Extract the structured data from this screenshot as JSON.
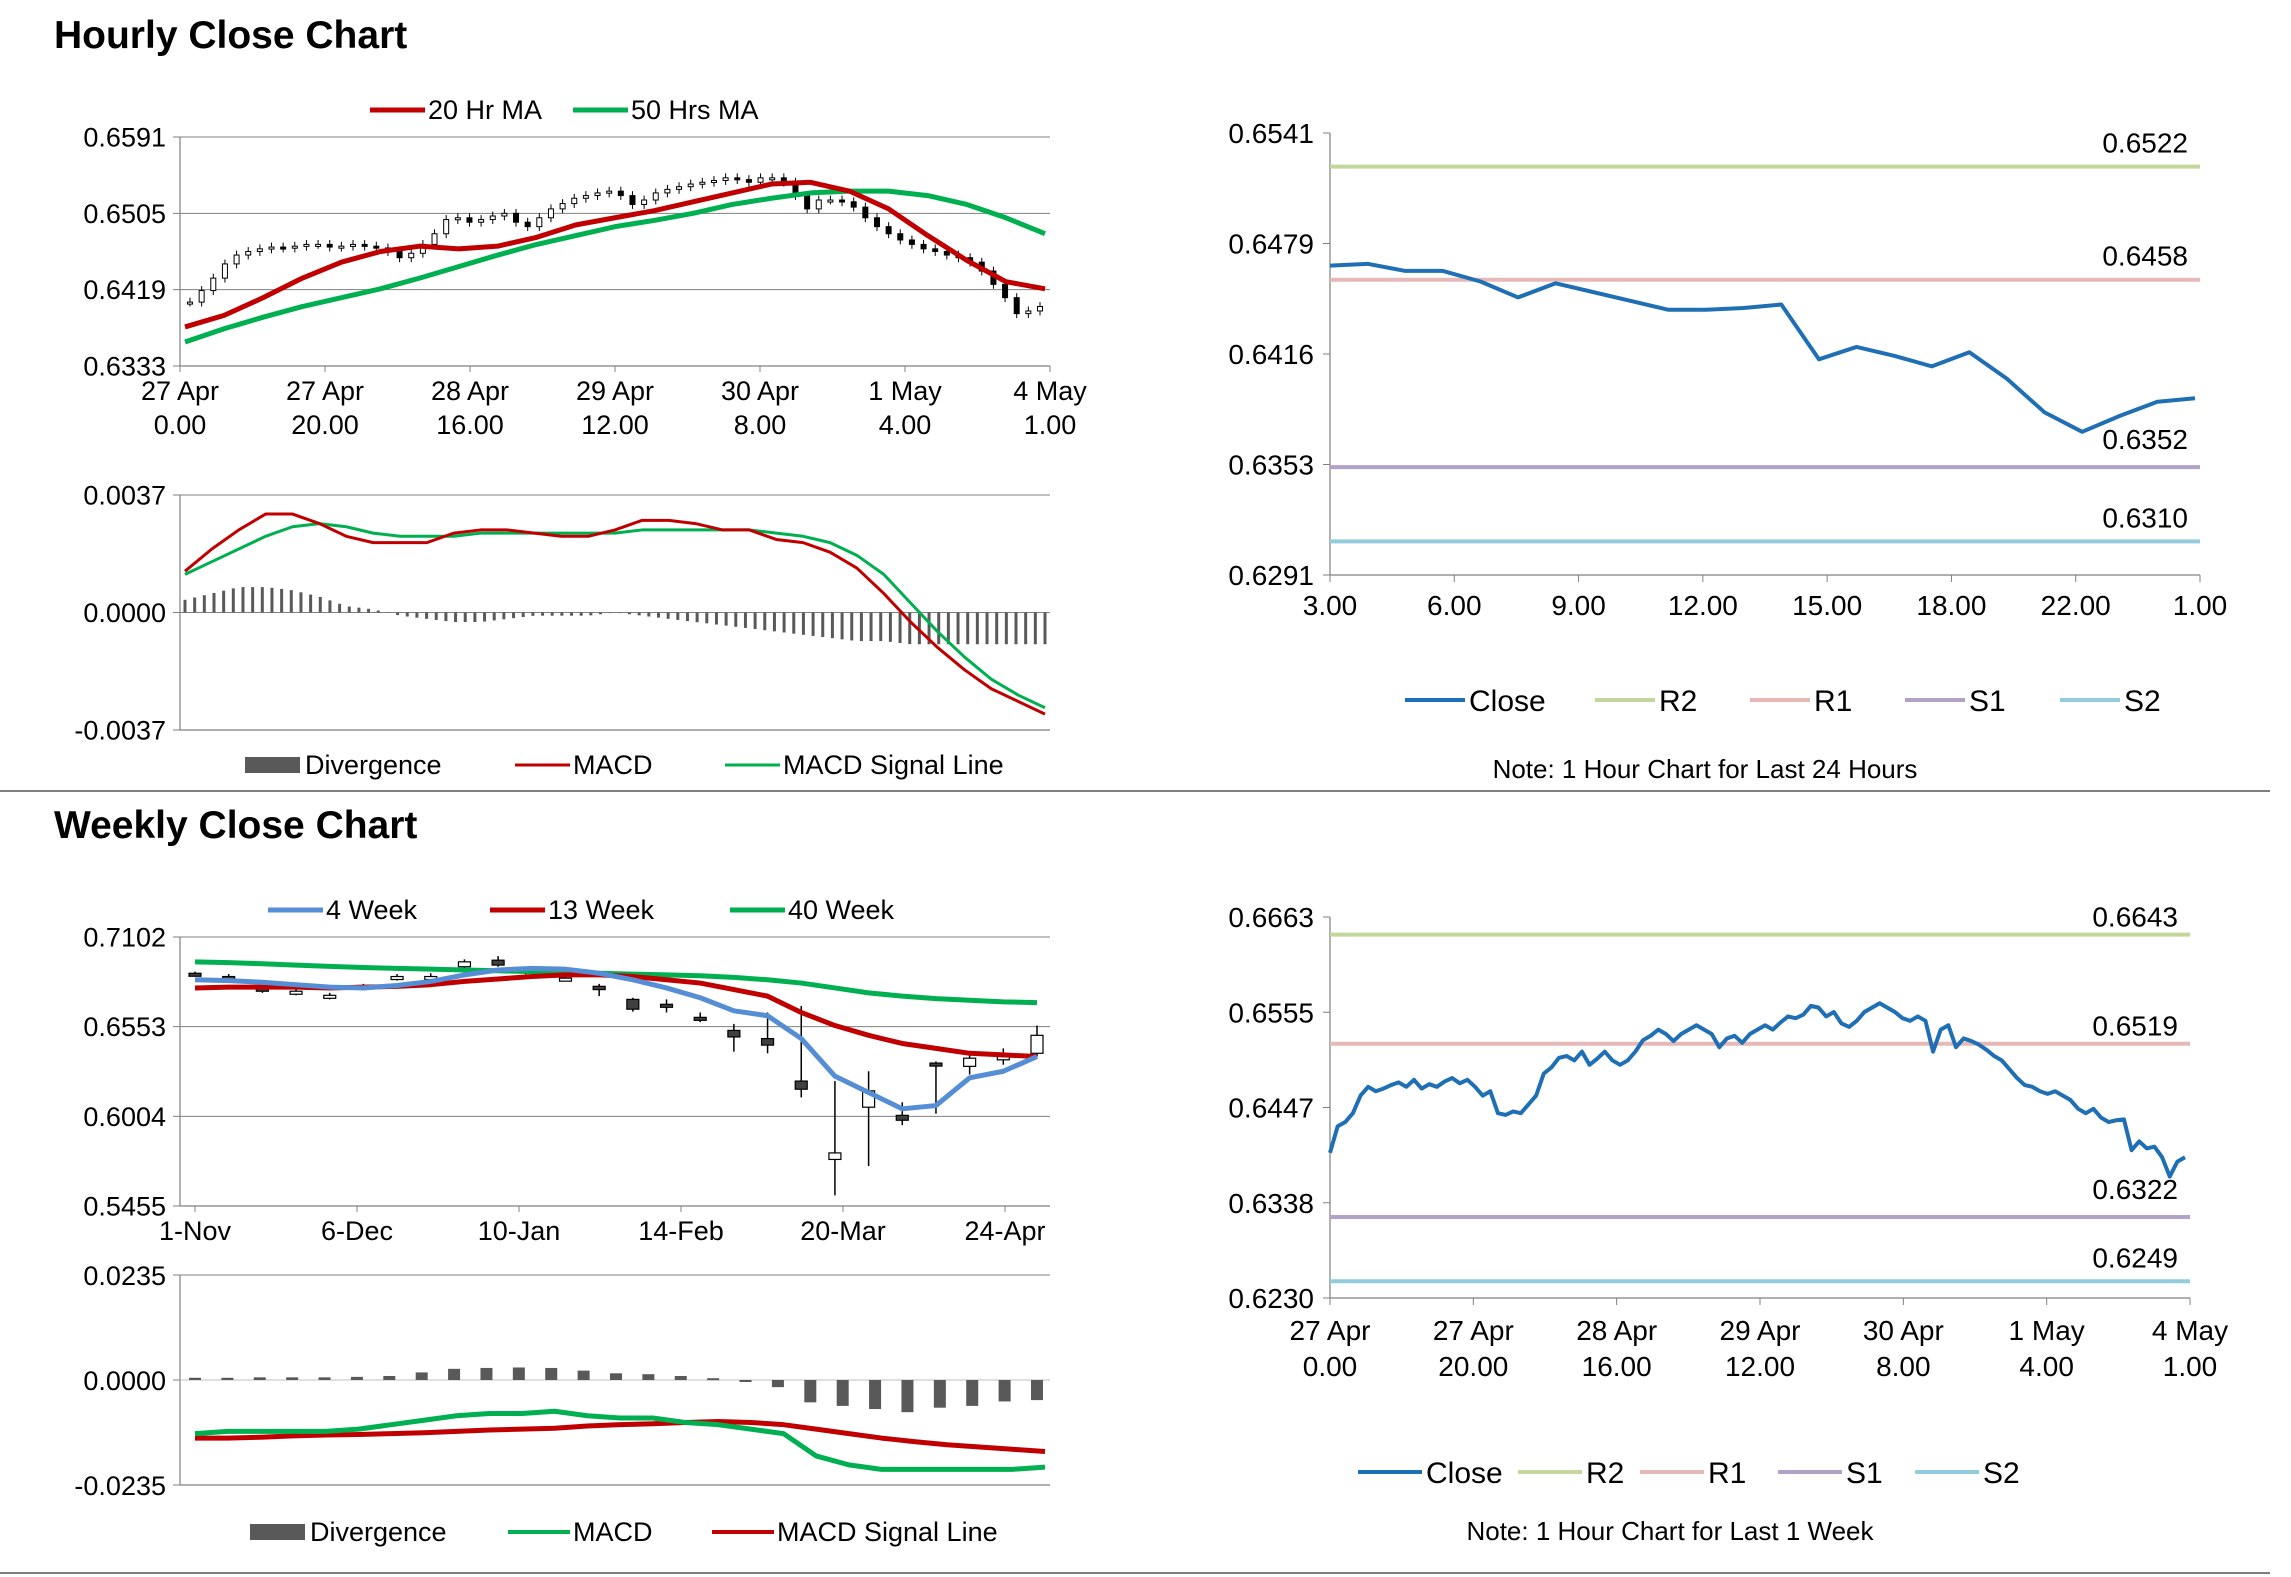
{
  "sections": {
    "hourly_title": "Hourly Close Chart",
    "weekly_title": "Weekly Close Chart"
  },
  "colors": {
    "ma20": "#c00000",
    "ma50": "#00b050",
    "close": "#1f6fb5",
    "r2": "#c3d69b",
    "r1": "#e6b9b8",
    "s1": "#b3a2c7",
    "s2": "#93cddd",
    "divergence": "#595959",
    "week4": "#558ed5"
  },
  "chart_data": [
    {
      "id": "hourly_candles",
      "type": "line",
      "legend": [
        "20 Hr MA",
        "50 Hrs MA"
      ],
      "yticks": [
        "0.6591",
        "0.6505",
        "0.6419",
        "0.6333"
      ],
      "ylim": [
        0.6333,
        0.6591
      ],
      "xticks": [
        [
          "27 Apr",
          "0.00"
        ],
        [
          "27 Apr",
          "20.00"
        ],
        [
          "28 Apr",
          "16.00"
        ],
        [
          "29 Apr",
          "12.00"
        ],
        [
          "30 Apr",
          "8.00"
        ],
        [
          "1 May",
          "4.00"
        ],
        [
          "4 May",
          "1.00"
        ]
      ],
      "candles_close": [
        0.6405,
        0.6418,
        0.6432,
        0.6448,
        0.6458,
        0.6462,
        0.6465,
        0.6467,
        0.6466,
        0.6468,
        0.647,
        0.647,
        0.6467,
        0.6468,
        0.647,
        0.6468,
        0.6466,
        0.6462,
        0.6455,
        0.646,
        0.647,
        0.6482,
        0.6498,
        0.65,
        0.6495,
        0.6498,
        0.6502,
        0.6505,
        0.6495,
        0.649,
        0.65,
        0.651,
        0.6516,
        0.6522,
        0.6525,
        0.6528,
        0.653,
        0.6525,
        0.6515,
        0.652,
        0.6528,
        0.6532,
        0.6535,
        0.6538,
        0.654,
        0.6542,
        0.6545,
        0.6543,
        0.654,
        0.6545,
        0.6545,
        0.654,
        0.6525,
        0.651,
        0.652,
        0.652,
        0.6518,
        0.6512,
        0.65,
        0.649,
        0.6482,
        0.6475,
        0.647,
        0.6465,
        0.6462,
        0.6458,
        0.6455,
        0.645,
        0.644,
        0.6425,
        0.641,
        0.6392,
        0.6395,
        0.64
      ],
      "series": [
        {
          "name": "20 Hr MA",
          "values": [
            0.6377,
            0.639,
            0.641,
            0.6432,
            0.645,
            0.6462,
            0.6468,
            0.6465,
            0.6468,
            0.6478,
            0.6492,
            0.65,
            0.6508,
            0.6518,
            0.6528,
            0.6538,
            0.654,
            0.653,
            0.651,
            0.648,
            0.6452,
            0.6428,
            0.642
          ]
        },
        {
          "name": "50 Hrs MA",
          "values": [
            0.636,
            0.6375,
            0.6388,
            0.64,
            0.641,
            0.642,
            0.6432,
            0.6445,
            0.6458,
            0.647,
            0.648,
            0.649,
            0.6497,
            0.6505,
            0.6515,
            0.6522,
            0.6528,
            0.653,
            0.653,
            0.6525,
            0.6515,
            0.65,
            0.6482
          ]
        }
      ]
    },
    {
      "id": "hourly_macd",
      "type": "line",
      "legend": [
        "Divergence",
        "MACD",
        "MACD Signal Line"
      ],
      "yticks": [
        "0.0037",
        "0.0000",
        "-0.0037"
      ],
      "ylim": [
        -0.0037,
        0.0037
      ],
      "series": [
        {
          "name": "MACD",
          "values": [
            0.0013,
            0.002,
            0.0026,
            0.0031,
            0.0031,
            0.0028,
            0.0024,
            0.0022,
            0.0022,
            0.0022,
            0.0025,
            0.0026,
            0.0026,
            0.0025,
            0.0024,
            0.0024,
            0.0026,
            0.0029,
            0.0029,
            0.0028,
            0.0026,
            0.0026,
            0.0023,
            0.0022,
            0.0019,
            0.0014,
            0.0006,
            -0.0003,
            -0.0011,
            -0.0018,
            -0.0024,
            -0.0028,
            -0.0032
          ]
        },
        {
          "name": "MACD Signal Line",
          "values": [
            0.0012,
            0.0016,
            0.002,
            0.0024,
            0.0027,
            0.0028,
            0.0027,
            0.0025,
            0.0024,
            0.0024,
            0.0024,
            0.0025,
            0.0025,
            0.0025,
            0.0025,
            0.0025,
            0.0025,
            0.0026,
            0.0026,
            0.0026,
            0.0026,
            0.0026,
            0.0025,
            0.0024,
            0.0022,
            0.0018,
            0.0012,
            0.0003,
            -0.0006,
            -0.0014,
            -0.0021,
            -0.0026,
            -0.003
          ]
        },
        {
          "name": "Divergence",
          "values": [
            0.0004,
            0.0006,
            0.0008,
            0.0008,
            0.0007,
            0.0005,
            0.0002,
            0.0001,
            -0.0001,
            -0.0002,
            -0.0003,
            -0.0003,
            -0.0002,
            -0.0001,
            -0.0001,
            -0.0001,
            0.0,
            -0.0001,
            -0.0002,
            -0.0003,
            -0.0004,
            -0.0005,
            -0.0006,
            -0.0007,
            -0.0008,
            -0.0009,
            -0.0009,
            -0.001,
            -0.001,
            -0.001,
            -0.001,
            -0.001,
            -0.001
          ]
        }
      ]
    },
    {
      "id": "hourly_24h",
      "type": "line",
      "yticks": [
        "0.6541",
        "0.6479",
        "0.6416",
        "0.6353",
        "0.6291"
      ],
      "ylim": [
        0.6291,
        0.6541
      ],
      "xticks": [
        "3.00",
        "6.00",
        "9.00",
        "12.00",
        "15.00",
        "18.00",
        "22.00",
        "1.00"
      ],
      "levels": [
        {
          "name": "R2",
          "value": 0.6522,
          "label": "0.6522"
        },
        {
          "name": "R1",
          "value": 0.6458,
          "label": "0.6458"
        },
        {
          "name": "S1",
          "value": 0.6352,
          "label": "0.6352"
        },
        {
          "name": "S2",
          "value": 0.631,
          "label": "0.6310"
        }
      ],
      "series": [
        {
          "name": "Close",
          "values": [
            0.6466,
            0.6467,
            0.6463,
            0.6463,
            0.6457,
            0.6448,
            0.6456,
            0.6451,
            0.6446,
            0.6441,
            0.6441,
            0.6442,
            0.6444,
            0.6413,
            0.642,
            0.6415,
            0.6409,
            0.6417,
            0.6402,
            0.6383,
            0.6372,
            0.6381,
            0.6389,
            0.6391
          ]
        }
      ],
      "legend": [
        "Close",
        "R2",
        "R1",
        "S1",
        "S2"
      ],
      "note": "Note: 1 Hour Chart for Last 24 Hours"
    },
    {
      "id": "weekly_candles",
      "type": "line",
      "legend": [
        "4 Week",
        "13 Week",
        "40 Week"
      ],
      "yticks": [
        "0.7102",
        "0.6553",
        "0.6004",
        "0.5455"
      ],
      "ylim": [
        0.5455,
        0.7102
      ],
      "xticks": [
        "1-Nov",
        "6-Dec",
        "10-Jan",
        "14-Feb",
        "20-Mar",
        "24-Apr"
      ],
      "candles": [
        {
          "o": 0.688,
          "c": 0.687,
          "h": 0.689,
          "l": 0.686
        },
        {
          "o": 0.686,
          "c": 0.6845,
          "h": 0.6875,
          "l": 0.6835
        },
        {
          "o": 0.679,
          "c": 0.677,
          "h": 0.68,
          "l": 0.676
        },
        {
          "o": 0.676,
          "c": 0.677,
          "h": 0.679,
          "l": 0.6745
        },
        {
          "o": 0.674,
          "c": 0.6745,
          "h": 0.676,
          "l": 0.672
        },
        {
          "o": 0.679,
          "c": 0.6805,
          "h": 0.6815,
          "l": 0.678
        },
        {
          "o": 0.685,
          "c": 0.686,
          "h": 0.6875,
          "l": 0.6835
        },
        {
          "o": 0.6855,
          "c": 0.686,
          "h": 0.688,
          "l": 0.6845
        },
        {
          "o": 0.692,
          "c": 0.695,
          "h": 0.6965,
          "l": 0.6905
        },
        {
          "o": 0.696,
          "c": 0.693,
          "h": 0.6985,
          "l": 0.692
        },
        {
          "o": 0.688,
          "c": 0.688,
          "h": 0.69,
          "l": 0.686
        },
        {
          "o": 0.685,
          "c": 0.685,
          "h": 0.687,
          "l": 0.683
        },
        {
          "o": 0.68,
          "c": 0.678,
          "h": 0.6815,
          "l": 0.674
        },
        {
          "o": 0.672,
          "c": 0.666,
          "h": 0.673,
          "l": 0.6645
        },
        {
          "o": 0.669,
          "c": 0.668,
          "h": 0.672,
          "l": 0.664
        },
        {
          "o": 0.661,
          "c": 0.6605,
          "h": 0.664,
          "l": 0.658
        },
        {
          "o": 0.653,
          "c": 0.649,
          "h": 0.657,
          "l": 0.64
        },
        {
          "o": 0.648,
          "c": 0.644,
          "h": 0.664,
          "l": 0.639
        },
        {
          "o": 0.622,
          "c": 0.617,
          "h": 0.668,
          "l": 0.612
        },
        {
          "o": 0.574,
          "c": 0.578,
          "h": 0.622,
          "l": 0.552
        },
        {
          "o": 0.606,
          "c": 0.616,
          "h": 0.628,
          "l": 0.57
        },
        {
          "o": 0.601,
          "c": 0.598,
          "h": 0.609,
          "l": 0.595
        },
        {
          "o": 0.633,
          "c": 0.632,
          "h": 0.634,
          "l": 0.602
        },
        {
          "o": 0.631,
          "c": 0.636,
          "h": 0.639,
          "l": 0.626
        },
        {
          "o": 0.635,
          "c": 0.637,
          "h": 0.642,
          "l": 0.632
        },
        {
          "o": 0.639,
          "c": 0.65,
          "h": 0.656,
          "l": 0.637
        }
      ],
      "series": [
        {
          "name": "4 Week",
          "values": [
            0.684,
            0.6835,
            0.6825,
            0.681,
            0.6795,
            0.679,
            0.6805,
            0.683,
            0.687,
            0.69,
            0.691,
            0.6905,
            0.688,
            0.684,
            0.679,
            0.673,
            0.665,
            0.662,
            0.648,
            0.625,
            0.615,
            0.605,
            0.607,
            0.624,
            0.628,
            0.637
          ]
        },
        {
          "name": "13 Week",
          "values": [
            0.679,
            0.6795,
            0.6795,
            0.6795,
            0.679,
            0.6795,
            0.68,
            0.681,
            0.683,
            0.6845,
            0.686,
            0.687,
            0.687,
            0.686,
            0.684,
            0.682,
            0.678,
            0.674,
            0.664,
            0.656,
            0.65,
            0.645,
            0.642,
            0.639,
            0.638,
            0.637
          ]
        },
        {
          "name": "40 Week",
          "values": [
            0.695,
            0.6945,
            0.6938,
            0.693,
            0.6922,
            0.6915,
            0.691,
            0.6905,
            0.69,
            0.6895,
            0.689,
            0.6885,
            0.688,
            0.6875,
            0.687,
            0.6865,
            0.6855,
            0.684,
            0.682,
            0.679,
            0.676,
            0.674,
            0.6725,
            0.6715,
            0.6705,
            0.67
          ]
        }
      ]
    },
    {
      "id": "weekly_macd",
      "type": "line",
      "legend": [
        "Divergence",
        "MACD",
        "MACD Signal Line"
      ],
      "yticks": [
        "0.0235",
        "0.0000",
        "-0.0235"
      ],
      "ylim": [
        -0.0235,
        0.0235
      ],
      "series": [
        {
          "name": "MACD",
          "values": [
            -0.012,
            -0.0115,
            -0.0115,
            -0.0115,
            -0.0115,
            -0.011,
            -0.01,
            -0.009,
            -0.008,
            -0.0075,
            -0.0075,
            -0.007,
            -0.008,
            -0.0085,
            -0.0085,
            -0.0095,
            -0.01,
            -0.011,
            -0.012,
            -0.017,
            -0.019,
            -0.02,
            -0.02,
            -0.02,
            -0.02,
            -0.02,
            -0.0195
          ]
        },
        {
          "name": "MACD Signal Line",
          "values": [
            -0.013,
            -0.013,
            -0.0128,
            -0.0125,
            -0.0123,
            -0.0122,
            -0.012,
            -0.0118,
            -0.0115,
            -0.0112,
            -0.011,
            -0.0108,
            -0.0103,
            -0.01,
            -0.0098,
            -0.0095,
            -0.0093,
            -0.0095,
            -0.01,
            -0.011,
            -0.012,
            -0.013,
            -0.0138,
            -0.0145,
            -0.015,
            -0.0155,
            -0.016
          ]
        },
        {
          "name": "Divergence",
          "values": [
            0.0005,
            0.0005,
            0.0006,
            0.0006,
            0.0006,
            0.0007,
            0.0009,
            0.0017,
            0.0025,
            0.0027,
            0.0028,
            0.0027,
            0.0021,
            0.0015,
            0.0013,
            0.0009,
            0.0004,
            -0.0004,
            -0.0016,
            -0.005,
            -0.0058,
            -0.0065,
            -0.0072,
            -0.0062,
            -0.0058,
            -0.0048,
            -0.0045
          ]
        }
      ]
    },
    {
      "id": "weekly_1w",
      "type": "line",
      "yticks": [
        "0.6663",
        "0.6555",
        "0.6447",
        "0.6338",
        "0.6230"
      ],
      "ylim": [
        0.623,
        0.6663
      ],
      "xticks": [
        [
          "27 Apr",
          "0.00"
        ],
        [
          "27 Apr",
          "20.00"
        ],
        [
          "28 Apr",
          "16.00"
        ],
        [
          "29 Apr",
          "12.00"
        ],
        [
          "30 Apr",
          "8.00"
        ],
        [
          "1 May",
          "4.00"
        ],
        [
          "4 May",
          "1.00"
        ]
      ],
      "levels": [
        {
          "name": "R2",
          "value": 0.6643,
          "label": "0.6643"
        },
        {
          "name": "R1",
          "value": 0.6519,
          "label": "0.6519"
        },
        {
          "name": "S1",
          "value": 0.6322,
          "label": "0.6322"
        },
        {
          "name": "S2",
          "value": 0.6249,
          "label": "0.6249"
        }
      ],
      "series": [
        {
          "name": "Close",
          "values": [
            0.6395,
            0.6425,
            0.643,
            0.644,
            0.646,
            0.647,
            0.6465,
            0.6468,
            0.6472,
            0.6475,
            0.647,
            0.6478,
            0.6468,
            0.6473,
            0.647,
            0.6476,
            0.648,
            0.6474,
            0.6478,
            0.647,
            0.646,
            0.6465,
            0.644,
            0.6438,
            0.6442,
            0.644,
            0.645,
            0.646,
            0.6485,
            0.6492,
            0.6503,
            0.6505,
            0.65,
            0.651,
            0.6495,
            0.6502,
            0.651,
            0.65,
            0.6495,
            0.65,
            0.651,
            0.6523,
            0.6528,
            0.6535,
            0.653,
            0.6522,
            0.653,
            0.6535,
            0.654,
            0.6535,
            0.653,
            0.6515,
            0.6525,
            0.6528,
            0.652,
            0.653,
            0.6535,
            0.654,
            0.6535,
            0.6543,
            0.655,
            0.6548,
            0.6552,
            0.6562,
            0.656,
            0.655,
            0.6555,
            0.6542,
            0.6538,
            0.6545,
            0.6555,
            0.656,
            0.6565,
            0.656,
            0.6555,
            0.6548,
            0.6545,
            0.655,
            0.6545,
            0.651,
            0.6535,
            0.654,
            0.6515,
            0.6525,
            0.6522,
            0.6518,
            0.6512,
            0.6505,
            0.65,
            0.649,
            0.648,
            0.6472,
            0.647,
            0.6465,
            0.6462,
            0.6465,
            0.646,
            0.6455,
            0.6445,
            0.644,
            0.6445,
            0.6435,
            0.643,
            0.6432,
            0.6433,
            0.6398,
            0.6408,
            0.64,
            0.6402,
            0.639,
            0.6368,
            0.6385,
            0.639
          ]
        }
      ],
      "legend": [
        "Close",
        "R2",
        "R1",
        "S1",
        "S2"
      ],
      "note": "Note: 1 Hour Chart for Last 1 Week"
    }
  ]
}
